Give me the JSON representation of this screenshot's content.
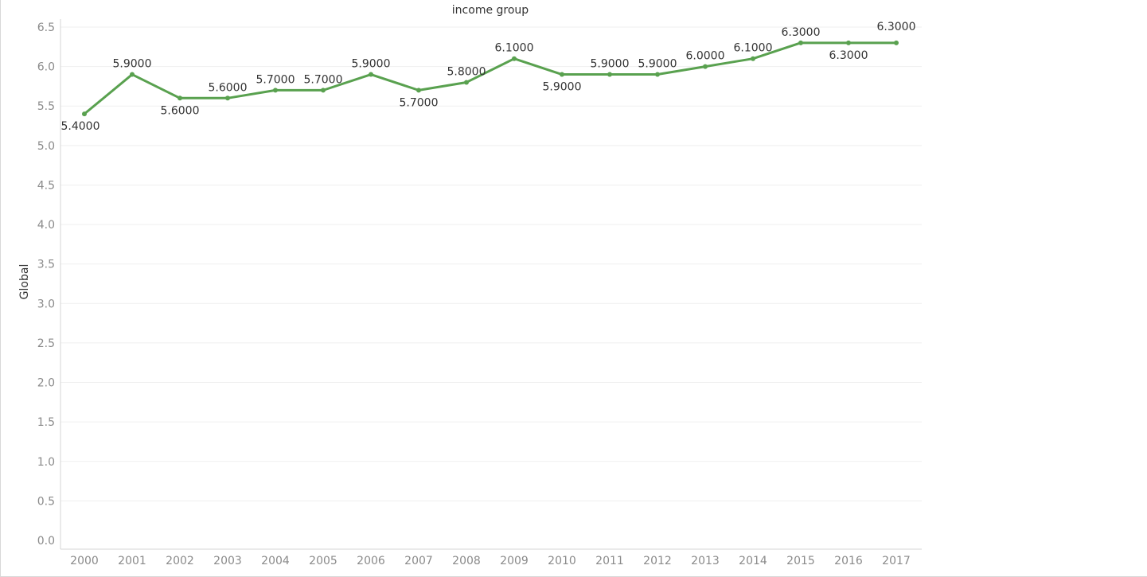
{
  "chart_data": {
    "type": "line",
    "title": "income group",
    "xlabel": "",
    "ylabel": "Global",
    "ylim": [
      0,
      6.5
    ],
    "y_ticks": [
      "0.0",
      "0.5",
      "1.0",
      "1.5",
      "2.0",
      "2.5",
      "3.0",
      "3.5",
      "4.0",
      "4.5",
      "5.0",
      "5.5",
      "6.0",
      "6.5"
    ],
    "categories": [
      "2000",
      "2001",
      "2002",
      "2003",
      "2004",
      "2005",
      "2006",
      "2007",
      "2008",
      "2009",
      "2010",
      "2011",
      "2012",
      "2013",
      "2014",
      "2015",
      "2016",
      "2017"
    ],
    "series": [
      {
        "values": [
          5.4,
          5.9,
          5.6,
          5.6,
          5.7,
          5.7,
          5.9,
          5.7,
          5.8,
          6.1,
          5.9,
          5.9,
          5.9,
          6.0,
          6.1,
          6.3,
          6.3,
          6.3
        ],
        "labels": [
          "5.4000",
          "5.9000",
          "5.6000",
          "5.6000",
          "5.7000",
          "5.7000",
          "5.9000",
          "5.7000",
          "5.8000",
          "6.1000",
          "5.9000",
          "5.9000",
          "5.9000",
          "6.0000",
          "6.1000",
          "6.3000",
          "6.3000",
          "6.3000"
        ],
        "color": "#59a14f"
      }
    ],
    "grid": true,
    "legend": "none"
  }
}
